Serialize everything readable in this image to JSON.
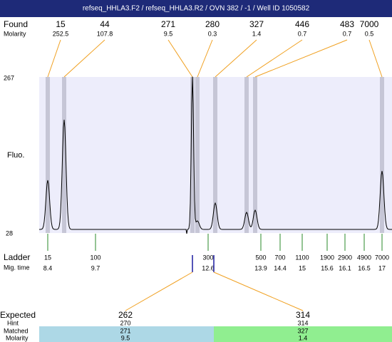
{
  "header": {
    "title": "refseq_HHLA3.F2 / refseq_HHLA3.R2 / OVN 382 / -1 / Well ID 1050582"
  },
  "found": {
    "label": "Found",
    "molarity_label": "Molarity",
    "peaks": [
      {
        "size": 15,
        "molarity": 252.5
      },
      {
        "size": 44,
        "molarity": 107.8
      },
      {
        "size": 271,
        "molarity": 9.5
      },
      {
        "size": 280,
        "molarity": 0.3
      },
      {
        "size": 327,
        "molarity": 1.4
      },
      {
        "size": 446,
        "molarity": 0.7
      },
      {
        "size": 483,
        "molarity": 0.7
      },
      {
        "size": 7000,
        "molarity": 0.5
      }
    ]
  },
  "plot": {
    "y_label": "Fluo.",
    "y_max": 267,
    "y_min": 28
  },
  "ladder": {
    "label": "Ladder",
    "time_label": "Mig. time",
    "entries": [
      {
        "size": 15,
        "time": 8.4
      },
      {
        "size": 100,
        "time": 9.7
      },
      {
        "size": 300,
        "time": 12.6
      },
      {
        "size": 500,
        "time": 13.9
      },
      {
        "size": 700,
        "time": 14.4
      },
      {
        "size": 1100,
        "time": 15
      },
      {
        "size": 1900,
        "time": 15.6
      },
      {
        "size": 2900,
        "time": 16.1
      },
      {
        "size": 4900,
        "time": 16.5
      },
      {
        "size": 7000,
        "time": 17
      }
    ]
  },
  "expected": {
    "label": "Expected",
    "hint_label": "Hint",
    "matched_label": "Matched",
    "molarity_label": "Molarity",
    "columns": [
      {
        "expected": 262,
        "hint": 270,
        "matched": 271,
        "molarity": 9.5
      },
      {
        "expected": 314,
        "hint": 314,
        "matched": 327,
        "molarity": 1.4
      }
    ]
  }
}
